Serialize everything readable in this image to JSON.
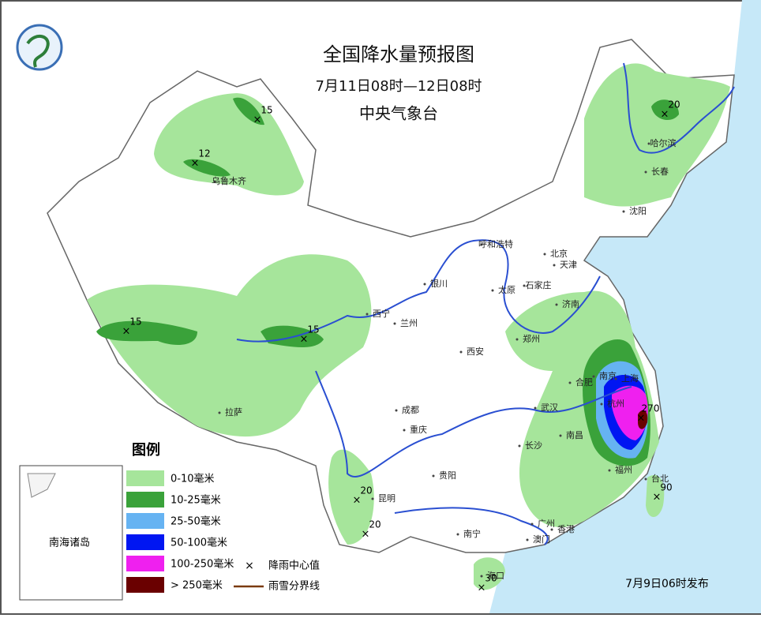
{
  "header": {
    "title": "全国降水量预报图",
    "period": "7月11日08时—12日08时",
    "issuer": "中央气象台"
  },
  "legend": {
    "title": "图例",
    "items": [
      {
        "label": "0-10毫米",
        "color": "#a6e59b"
      },
      {
        "label": "10-25毫米",
        "color": "#3aa23a"
      },
      {
        "label": "25-50毫米",
        "color": "#66b3f2"
      },
      {
        "label": "50-100毫米",
        "color": "#0016f2"
      },
      {
        "label": "100-250毫米",
        "color": "#ef20ef"
      },
      {
        "label": "> 250毫米",
        "color": "#6a0000"
      }
    ],
    "symbols": [
      {
        "label": "降雨中心值"
      },
      {
        "label": "雨雪分界线"
      }
    ]
  },
  "inset": {
    "label": "南海诸岛"
  },
  "cities": [
    "乌鲁木齐",
    "哈尔滨",
    "长春",
    "沈阳",
    "呼和浩特",
    "北京",
    "天津",
    "石家庄",
    "太原",
    "济南",
    "银川",
    "西宁",
    "兰州",
    "西安",
    "郑州",
    "合肥",
    "南京",
    "上海",
    "杭州",
    "武汉",
    "成都",
    "重庆",
    "拉萨",
    "长沙",
    "南昌",
    "福州",
    "贵阳",
    "昆明",
    "南宁",
    "广州",
    "香港",
    "澳门",
    "海口",
    "台北"
  ],
  "rain_centers": [
    15,
    12,
    20,
    15,
    15,
    270,
    90,
    20,
    20,
    30
  ],
  "footer": "7月9日06时发布"
}
